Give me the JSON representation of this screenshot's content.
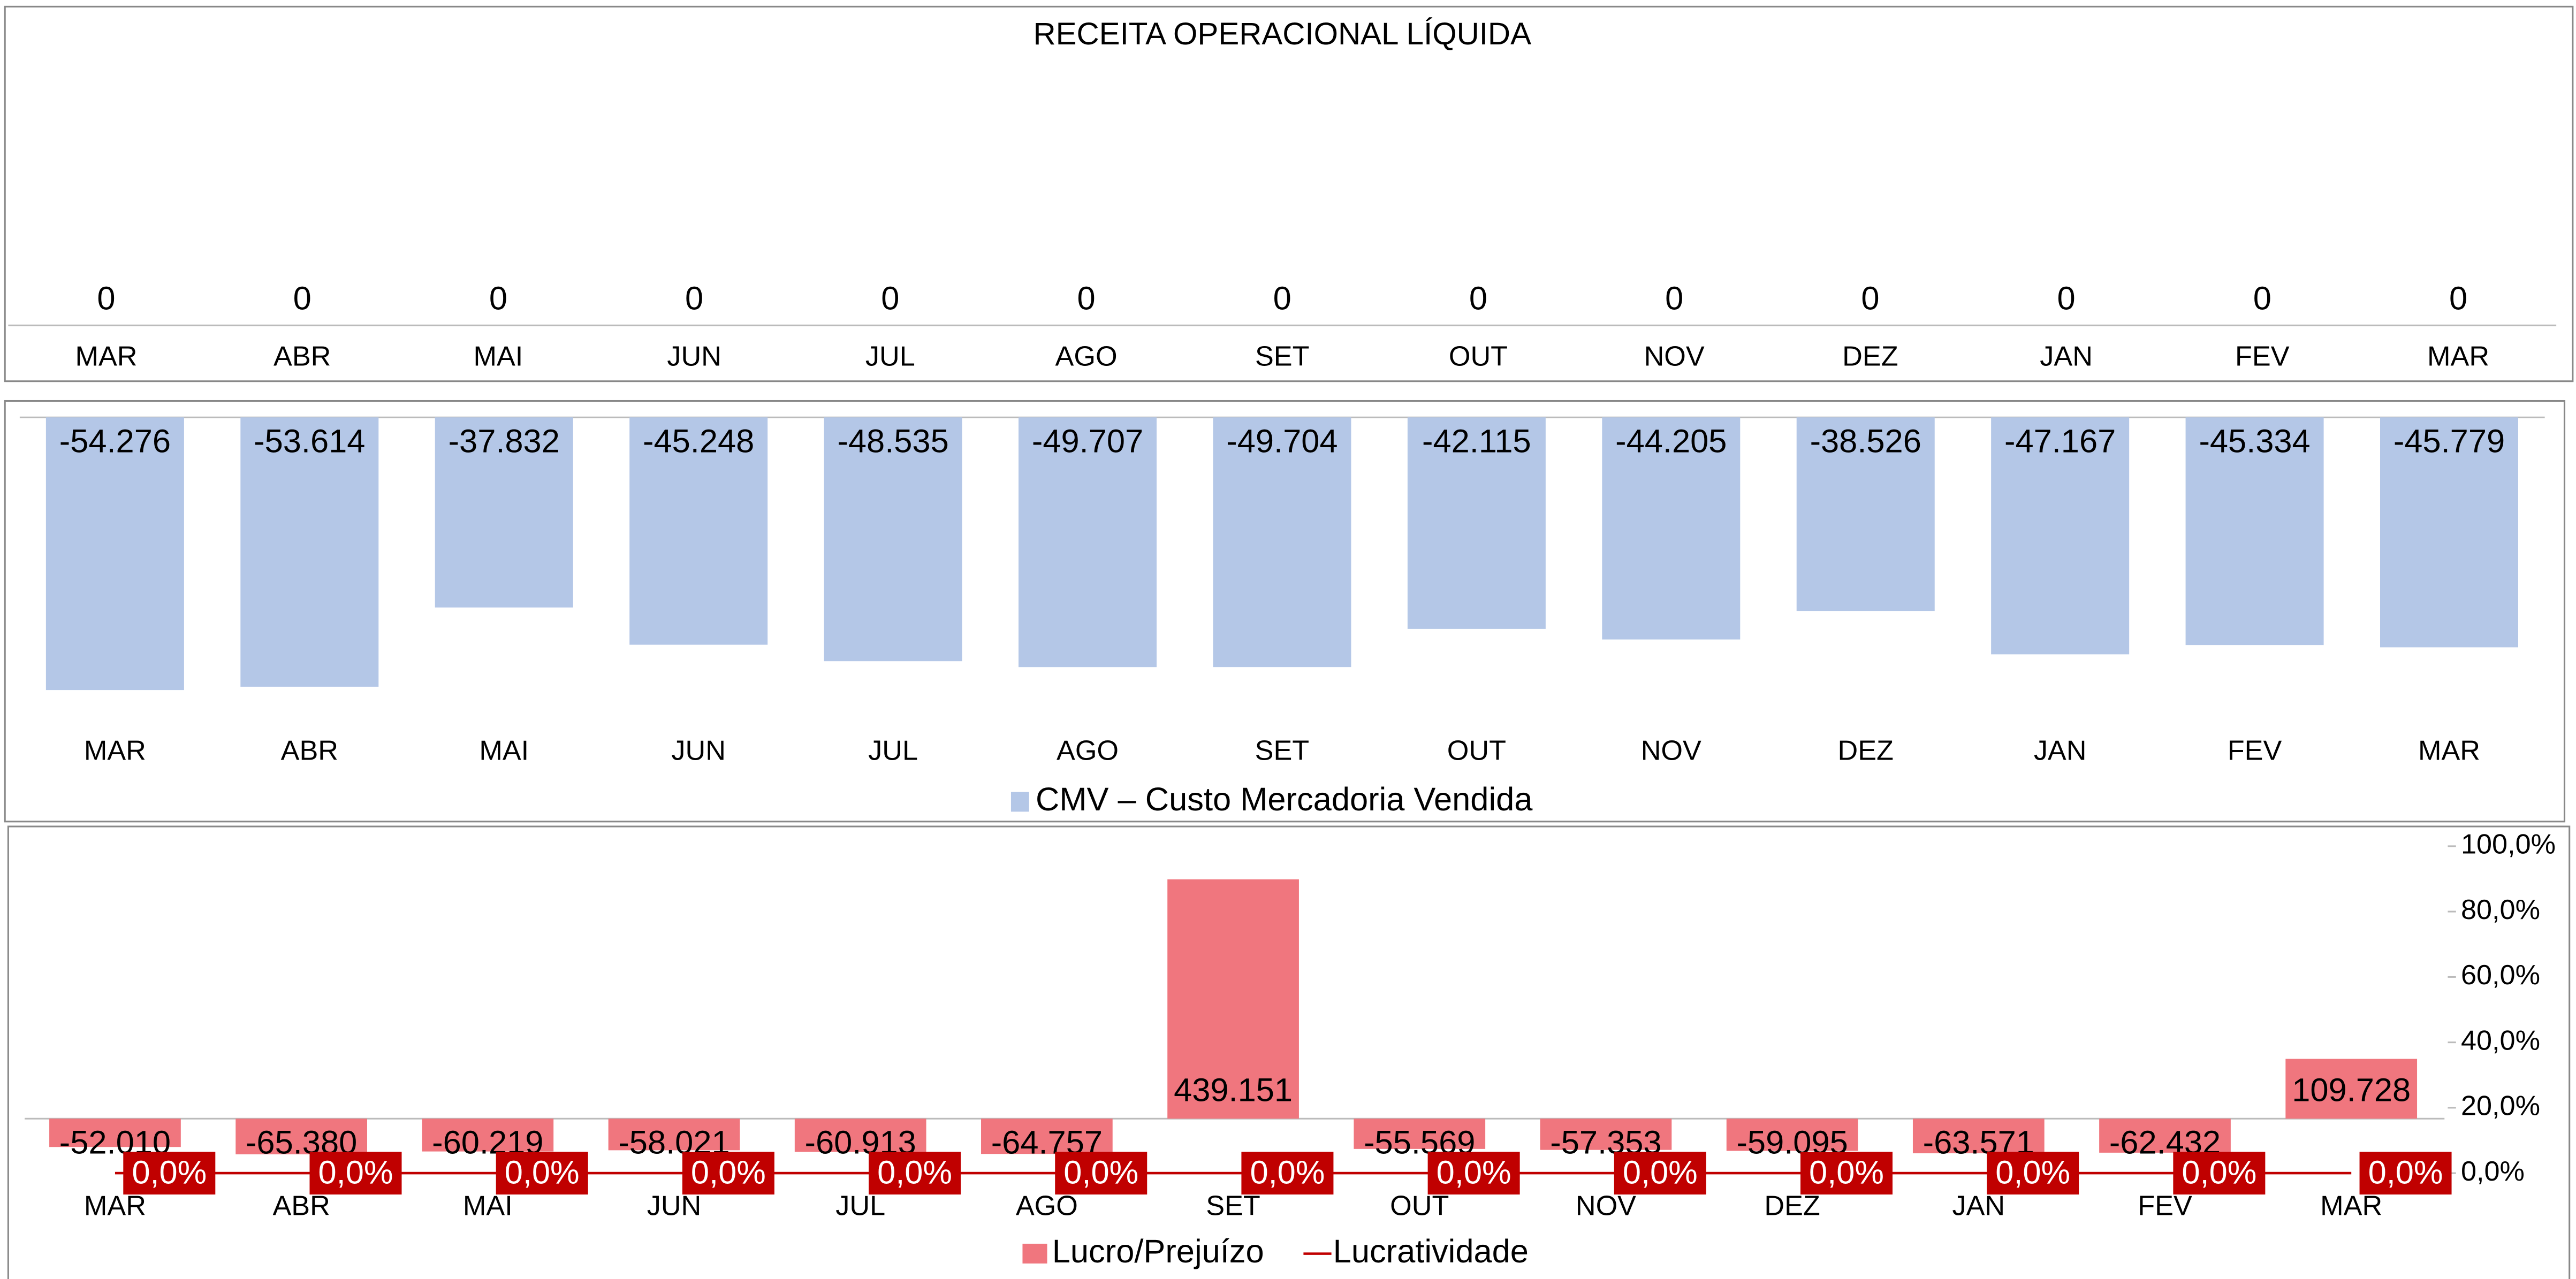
{
  "chart_data": [
    {
      "type": "bar",
      "title": "RECEITA OPERACIONAL LÍQUIDA",
      "categories": [
        "MAR",
        "ABR",
        "MAI",
        "JUN",
        "JUL",
        "AGO",
        "SET",
        "OUT",
        "NOV",
        "DEZ",
        "JAN",
        "FEV",
        "MAR"
      ],
      "values": [
        0,
        0,
        0,
        0,
        0,
        0,
        0,
        0,
        0,
        0,
        0,
        0,
        0
      ],
      "color": "#b4c7e7",
      "ylim": [
        0,
        1
      ]
    },
    {
      "type": "bar",
      "categories": [
        "MAR",
        "ABR",
        "MAI",
        "JUN",
        "JUL",
        "AGO",
        "SET",
        "OUT",
        "NOV",
        "DEZ",
        "JAN",
        "FEV",
        "MAR"
      ],
      "series": [
        {
          "name": "CMV – Custo Mercadoria Vendida",
          "color": "#b4c7e7",
          "values": [
            -54276,
            -53614,
            -37832,
            -45248,
            -48535,
            -49707,
            -49704,
            -42115,
            -44205,
            -38526,
            -47167,
            -45334,
            -45779
          ],
          "value_labels": [
            "-54.276",
            "-53.614",
            "-37.832",
            "-45.248",
            "-48.535",
            "-49.707",
            "-49.704",
            "-42.115",
            "-44.205",
            "-38.526",
            "-47.167",
            "-45.334",
            "-45.779"
          ]
        }
      ],
      "ylim": [
        -60000,
        0
      ],
      "legend": "bottom"
    },
    {
      "type": "combo",
      "categories": [
        "MAR",
        "ABR",
        "MAI",
        "JUN",
        "JUL",
        "AGO",
        "SET",
        "OUT",
        "NOV",
        "DEZ",
        "JAN",
        "FEV",
        "MAR"
      ],
      "series": [
        {
          "name": "Lucro/Prejuízo",
          "type": "bar",
          "color": "#f0767e",
          "values": [
            -52010,
            -65380,
            -60219,
            -58021,
            -60913,
            -64757,
            439151,
            -55569,
            -57353,
            -59095,
            -63571,
            -62432,
            109728
          ],
          "value_labels": [
            "-52.010",
            "-65.380",
            "-60.219",
            "-58.021",
            "-60.913",
            "-64.757",
            "439.151",
            "-55.569",
            "-57.353",
            "-59.095",
            "-63.571",
            "-62.432",
            "109.728"
          ]
        },
        {
          "name": "Lucratividade",
          "type": "line",
          "axis": "y2",
          "color": "#c00000",
          "values": [
            0,
            0,
            0,
            0,
            0,
            0,
            0,
            0,
            0,
            0,
            0,
            0,
            0
          ],
          "value_labels": [
            "0,0%",
            "0,0%",
            "0,0%",
            "0,0%",
            "0,0%",
            "0,0%",
            "0,0%",
            "0,0%",
            "0,0%",
            "0,0%",
            "0,0%",
            "0,0%",
            "0,0%"
          ]
        }
      ],
      "ylim": [
        -100000,
        500000
      ],
      "y2lim": [
        0,
        100
      ],
      "y2ticks": [
        {
          "value": 0,
          "label": "0,0%"
        },
        {
          "value": 20,
          "label": "20,0%"
        },
        {
          "value": 40,
          "label": "40,0%"
        },
        {
          "value": 60,
          "label": "60,0%"
        },
        {
          "value": 80,
          "label": "80,0%"
        },
        {
          "value": 100,
          "label": "100,0%"
        }
      ],
      "legend": "bottom"
    }
  ]
}
